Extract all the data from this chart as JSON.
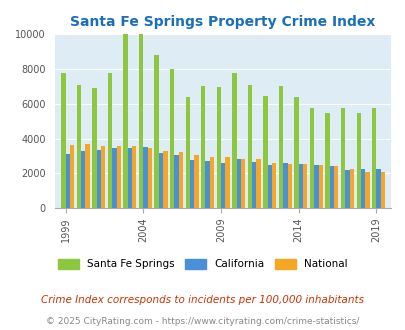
{
  "title": "Santa Fe Springs Property Crime Index",
  "title_color": "#1a6fba",
  "subtitle": "Crime Index corresponds to incidents per 100,000 inhabitants",
  "subtitle_color": "#cc3300",
  "footer": "© 2025 CityRating.com - https://www.cityrating.com/crime-statistics/",
  "footer_color": "#888888",
  "years": [
    1999,
    2000,
    2001,
    2002,
    2003,
    2004,
    2005,
    2006,
    2007,
    2008,
    2009,
    2010,
    2011,
    2012,
    2013,
    2014,
    2015,
    2016,
    2017,
    2018,
    2019
  ],
  "santa_fe": [
    7800,
    7100,
    6900,
    7800,
    10000,
    10000,
    8800,
    8000,
    6400,
    7050,
    6950,
    7750,
    7100,
    6450,
    7000,
    6400,
    5750,
    5450,
    5750,
    5450,
    5750
  ],
  "california": [
    3100,
    3300,
    3350,
    3450,
    3450,
    3500,
    3150,
    3050,
    2750,
    2700,
    2600,
    2850,
    2650,
    2450,
    2600,
    2550,
    2450,
    2400,
    2200,
    2250,
    2250
  ],
  "national": [
    3650,
    3700,
    3550,
    3600,
    3550,
    3450,
    3300,
    3250,
    3050,
    2950,
    2950,
    2850,
    2850,
    2600,
    2550,
    2550,
    2450,
    2400,
    2250,
    2100,
    2100
  ],
  "color_sfs": "#8dc63f",
  "color_ca": "#4a90d9",
  "color_nat": "#f5a623",
  "bg_color": "#deedf5",
  "ylim": [
    0,
    10000
  ],
  "yticks": [
    0,
    2000,
    4000,
    6000,
    8000,
    10000
  ],
  "bar_width": 0.28,
  "legend_labels": [
    "Santa Fe Springs",
    "California",
    "National"
  ],
  "tick_years": [
    1999,
    2004,
    2009,
    2014,
    2019
  ]
}
